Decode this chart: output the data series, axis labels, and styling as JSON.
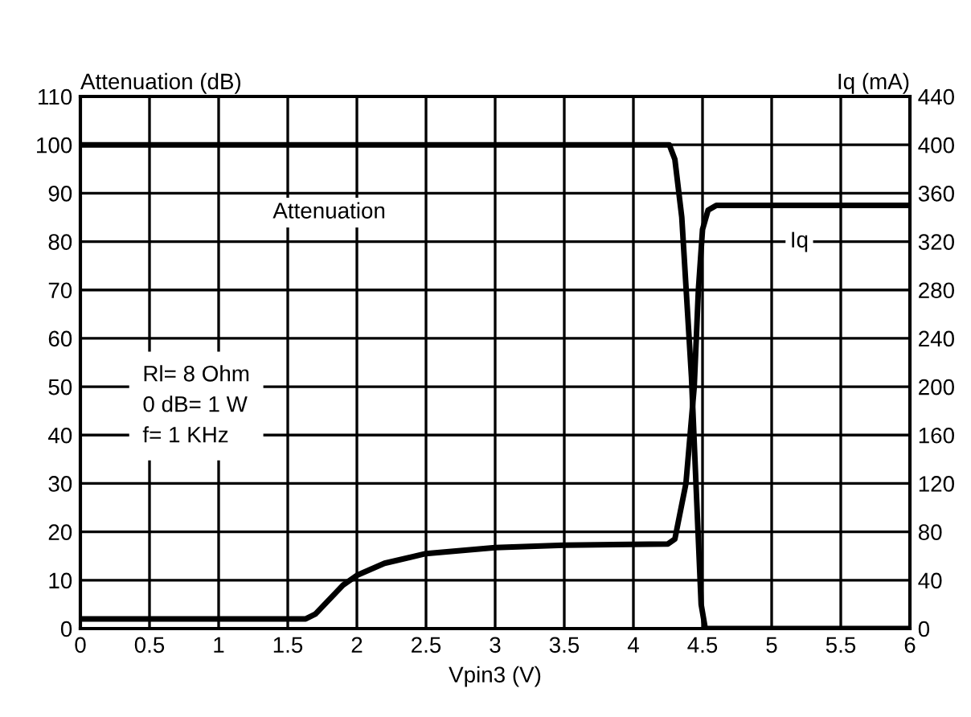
{
  "chart_data": {
    "type": "line",
    "xlabel": "Vpin3 (V)",
    "ylabel": "Attenuation (dB)",
    "y2label": "Iq (mA)",
    "xlim": [
      0,
      6
    ],
    "xticks": [
      0,
      0.5,
      1,
      1.5,
      2,
      2.5,
      3,
      3.5,
      4,
      4.5,
      5,
      5.5,
      6
    ],
    "ylim": [
      0,
      110
    ],
    "yticks": [
      0,
      10,
      20,
      30,
      40,
      50,
      60,
      70,
      80,
      90,
      100,
      110
    ],
    "y2lim": [
      0,
      440
    ],
    "y2ticks": [
      0,
      40,
      80,
      120,
      160,
      200,
      240,
      280,
      320,
      360,
      400,
      440
    ],
    "grid": true,
    "legend": false,
    "marker": "none",
    "line_style": "solid",
    "series": [
      {
        "name": "Attenuation",
        "color": "#000000",
        "x": [
          0,
          4.26,
          4.3,
          4.35,
          4.42,
          4.46,
          4.49,
          4.52,
          6
        ],
        "values": [
          100,
          100,
          97,
          85,
          52,
          25,
          5,
          0,
          0
        ]
      },
      {
        "name": "Iq",
        "color": "#000000",
        "axis": "y2",
        "x": [
          0,
          1.63,
          1.7,
          1.8,
          1.9,
          2,
          2.2,
          2.5,
          3,
          3.5,
          4.25,
          4.3,
          4.38,
          4.44,
          4.47,
          4.5,
          4.54,
          4.6,
          6
        ],
        "values": [
          8,
          8,
          12,
          24,
          36,
          44,
          54,
          62,
          67,
          69,
          70,
          74,
          120,
          200,
          280,
          330,
          346,
          350,
          350
        ]
      }
    ],
    "annotations": [
      "Rl= 8 Ohm\n0 dB= 1 W\nf= 1 KHz"
    ]
  }
}
